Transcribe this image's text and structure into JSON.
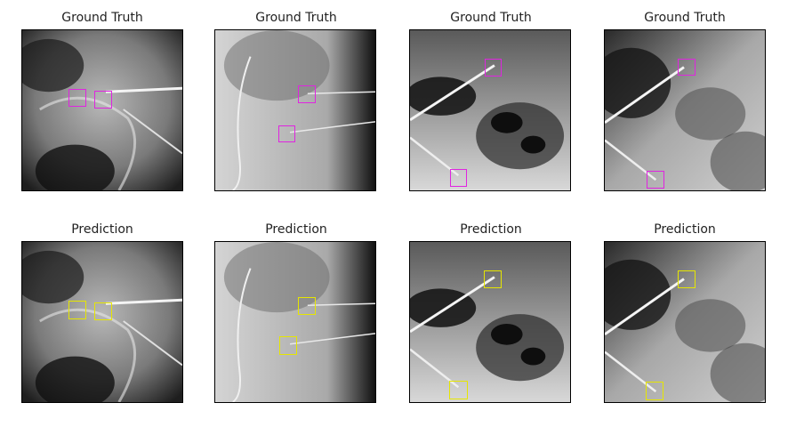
{
  "figure": {
    "row_titles": {
      "top": "Ground Truth",
      "bottom": "Prediction"
    },
    "colors": {
      "ground_truth_box": "#e024e0",
      "prediction_box": "#e6e600"
    },
    "panels": [
      {
        "id": "scan-1",
        "description_icon": "xray-pelvis-image"
      },
      {
        "id": "scan-2",
        "description_icon": "xray-spine-lateral-image"
      },
      {
        "id": "scan-3",
        "description_icon": "xray-abdomen-needles-image"
      },
      {
        "id": "scan-4",
        "description_icon": "xray-abdomen-needles-image-2"
      }
    ]
  }
}
